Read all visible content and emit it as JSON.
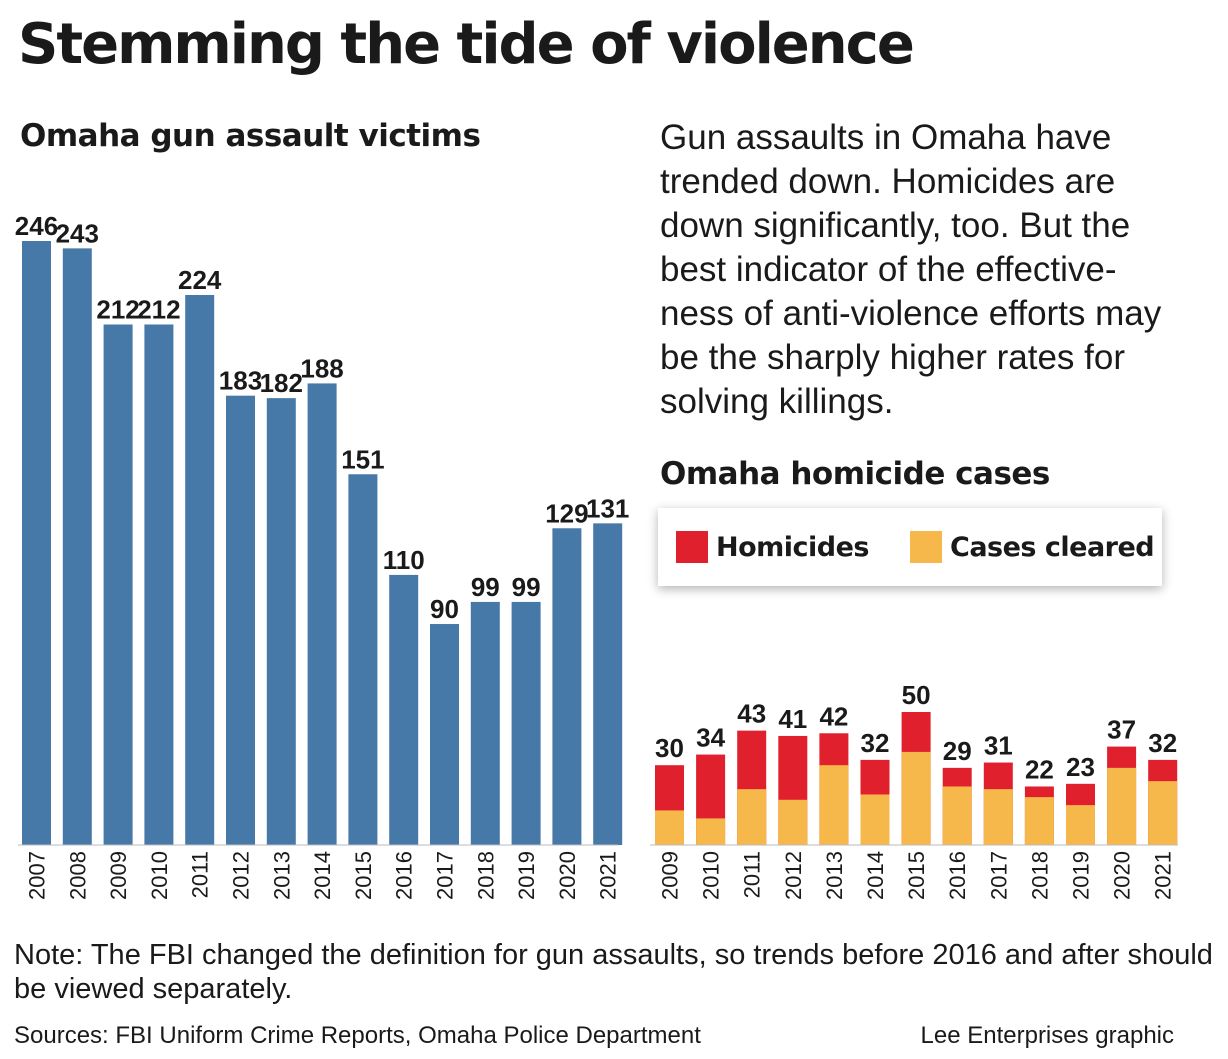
{
  "title": "Stemming the tide of violence",
  "description": "Gun assaults in Omaha have\ntrended down. Homicides are\ndown significantly, too. But the\nbest indicator of the effective-\nness of anti-violence efforts may\nbe the sharply higher rates for\nsolving killings.",
  "note": "Note: The FBI changed the definition for gun assaults, so trends before 2016 and after should be viewed separately.",
  "sources": "Sources: FBI Uniform Crime Reports, Omaha Police Department",
  "credit": "Lee Enterprises graphic",
  "colors": {
    "bar_blue": "#4679a8",
    "homicides_red": "#e0202c",
    "cleared_orange": "#f7b84b"
  },
  "chart_data": [
    {
      "type": "bar",
      "title": "Omaha gun assault victims",
      "categories": [
        "2007",
        "2008",
        "2009",
        "2010",
        "2011",
        "2012",
        "2013",
        "2014",
        "2015",
        "2016",
        "2017",
        "2018",
        "2019",
        "2020",
        "2021"
      ],
      "values": [
        246,
        243,
        212,
        212,
        224,
        183,
        182,
        188,
        151,
        110,
        90,
        99,
        99,
        129,
        131
      ],
      "ylim": [
        0,
        246
      ],
      "grid": false,
      "xlabel": "",
      "ylabel": ""
    },
    {
      "type": "bar",
      "title": "Omaha homicide cases",
      "categories": [
        "2009",
        "2010",
        "2011",
        "2012",
        "2013",
        "2014",
        "2015",
        "2016",
        "2017",
        "2018",
        "2019",
        "2020",
        "2021"
      ],
      "series": [
        {
          "name": "Homicides",
          "values": [
            30,
            34,
            43,
            41,
            42,
            32,
            50,
            29,
            31,
            22,
            23,
            37,
            32
          ]
        },
        {
          "name": "Cases cleared",
          "values": [
            13,
            10,
            21,
            17,
            30,
            19,
            35,
            22,
            21,
            18,
            15,
            29,
            24
          ]
        }
      ],
      "legend": [
        "Homicides",
        "Cases cleared"
      ],
      "legend_position": "top",
      "ylim": [
        0,
        50
      ],
      "grid": false,
      "xlabel": "",
      "ylabel": ""
    }
  ]
}
